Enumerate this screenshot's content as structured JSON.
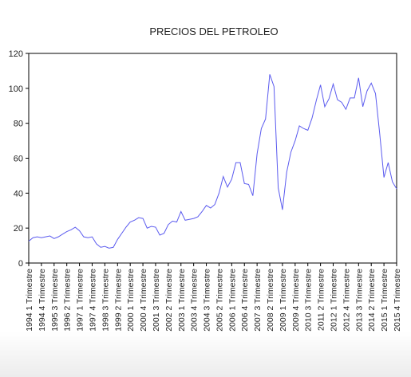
{
  "chart_data": {
    "type": "line",
    "title": "PRECIOS DEL PETROLEO",
    "xlabel": "",
    "ylabel": "",
    "ylim": [
      0,
      120
    ],
    "yticks": [
      0,
      20,
      40,
      60,
      80,
      100,
      120
    ],
    "grid": false,
    "line_color": "#5b5bef",
    "x_tick_labels": [
      "1994 1 Trimestre",
      "1994 4 Trimestre",
      "1995 3 Trimestre",
      "1996 2 Trimestre",
      "1997 1 Trimestre",
      "1997 4 Trimestre",
      "1998 3 Trimestre",
      "1999 2 Trimestre",
      "2000 1 Trimestre",
      "2000 4 Trimestre",
      "2001 3 Trimestre",
      "2002 2 Trimestre",
      "2003 1 Trimestre",
      "2003 4 Trimestre",
      "2004 3 Trimestre",
      "2005 2 Trimestre",
      "2006 1 Trimestre",
      "2006 4 Trimestre",
      "2007 3 Trimestre",
      "2008 2 Trimestre",
      "2009 1 Trimestre",
      "2009 4 Trimestre",
      "2010 3 Trimestre",
      "2011 2 Trimestre",
      "2012 1 Trimestre",
      "2012 4 Trimestre",
      "2013 3 Trimestre",
      "2014 2 Trimestre",
      "2015 1 Trimestre",
      "2015 4 Trimestre"
    ],
    "x_tick_every": 3,
    "values": [
      12.5,
      14.5,
      15,
      14.5,
      15,
      15.5,
      14,
      15,
      16.5,
      18,
      19,
      20.5,
      18.5,
      15,
      14.5,
      15,
      11,
      9,
      9.5,
      8.5,
      9,
      13.5,
      17,
      20.5,
      23.5,
      24.5,
      26,
      25.5,
      20,
      21,
      20.5,
      16,
      17,
      22,
      24,
      23.5,
      29.5,
      24.5,
      25,
      25.5,
      26.5,
      29.5,
      33,
      31.5,
      33.5,
      40,
      49.5,
      43.5,
      48,
      57.5,
      57.5,
      45.5,
      45,
      38.5,
      62.5,
      77,
      82.5,
      108,
      101,
      43,
      30.5,
      52,
      63.5,
      70,
      78.5,
      77,
      76,
      83,
      93,
      102,
      89.5,
      94,
      102.5,
      93.5,
      92,
      88,
      94.5,
      94.5,
      106,
      89.5,
      98.5,
      103,
      97,
      74,
      49,
      57.5,
      46.5,
      42.5
    ]
  }
}
